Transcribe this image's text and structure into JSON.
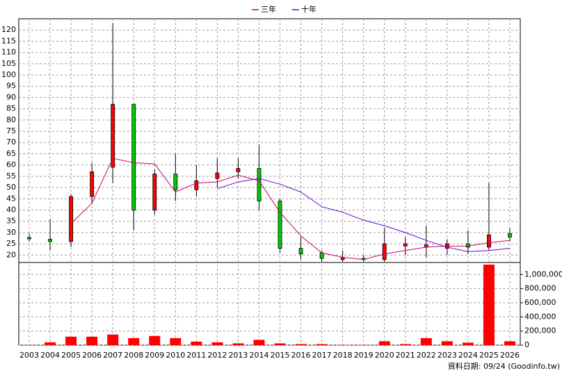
{
  "chart_data": {
    "type": "candlestick",
    "legend": "top",
    "source": "資料日期: 09/24  (Goodinfo.tw)",
    "categories": [
      "2003",
      "2004",
      "2005",
      "2006",
      "2007",
      "2008",
      "2009",
      "2010",
      "2011",
      "2012",
      "2013",
      "2014",
      "2015",
      "2016",
      "2017",
      "2018",
      "2019",
      "2020",
      "2021",
      "2022",
      "2023",
      "2024",
      "2025",
      "2026"
    ],
    "open": [
      27.8,
      27,
      26,
      46,
      59,
      87,
      40,
      56,
      49,
      54,
      57,
      58.5,
      44,
      23,
      21,
      18,
      18.5,
      18,
      24,
      23.5,
      23,
      25,
      23.5,
      29.5
    ],
    "high": [
      29.5,
      36,
      47,
      61,
      123,
      87,
      58,
      65,
      60,
      63,
      63,
      69,
      45,
      28,
      22,
      22,
      20,
      32,
      28,
      33,
      27,
      31,
      52,
      32
    ],
    "low": [
      26,
      22,
      23.5,
      43,
      52,
      31,
      38,
      44,
      46,
      50,
      54,
      40,
      21,
      18,
      17,
      17,
      17,
      17,
      20,
      19,
      20,
      20.5,
      22,
      26
    ],
    "close": [
      27.2,
      26,
      46,
      57,
      87,
      40,
      56,
      49,
      53,
      56.5,
      58.5,
      44,
      23,
      20.5,
      18.5,
      19,
      18,
      25,
      25,
      24.5,
      25,
      23.5,
      29,
      28
    ],
    "rise_color": "#ff0000",
    "fall_color": "#00cc00",
    "series": [
      {
        "name": "三年",
        "color": "#cc0066",
        "values": [
          null,
          null,
          34,
          43,
          63,
          61,
          60.5,
          48,
          52,
          52.5,
          55.5,
          53,
          39,
          28.5,
          21,
          19,
          18,
          20.5,
          22,
          23.5,
          24,
          24,
          25.5,
          26.5
        ]
      },
      {
        "name": "十年",
        "color": "#6600cc",
        "values": [
          null,
          null,
          null,
          null,
          null,
          null,
          null,
          null,
          null,
          49.5,
          52.5,
          54,
          51.5,
          48,
          41.5,
          39,
          35.5,
          33,
          30,
          26.5,
          23.5,
          21.5,
          22,
          23
        ]
      }
    ],
    "ylim": [
      17,
      125
    ],
    "yticks": [
      20,
      25,
      30,
      35,
      40,
      45,
      50,
      55,
      60,
      65,
      70,
      75,
      80,
      85,
      90,
      95,
      100,
      105,
      110,
      115,
      120
    ],
    "volume": {
      "color": "#ff0000",
      "values": [
        3000,
        40000,
        120000,
        120000,
        150000,
        100000,
        130000,
        100000,
        50000,
        40000,
        25000,
        75000,
        25000,
        15000,
        15000,
        5000,
        3000,
        55000,
        15000,
        100000,
        55000,
        35000,
        1140000,
        55000
      ]
    },
    "y2lim": [
      0,
      1160000
    ],
    "y2ticks": [
      0,
      {
        "value": 200000,
        "label": "200,000"
      },
      {
        "value": 400000,
        "label": "400,000"
      },
      {
        "value": 600000,
        "label": "600,000"
      },
      {
        "value": 800000,
        "label": "800,000"
      },
      {
        "value": 1000000,
        "label": "1,000,000"
      }
    ],
    "grid": true
  }
}
